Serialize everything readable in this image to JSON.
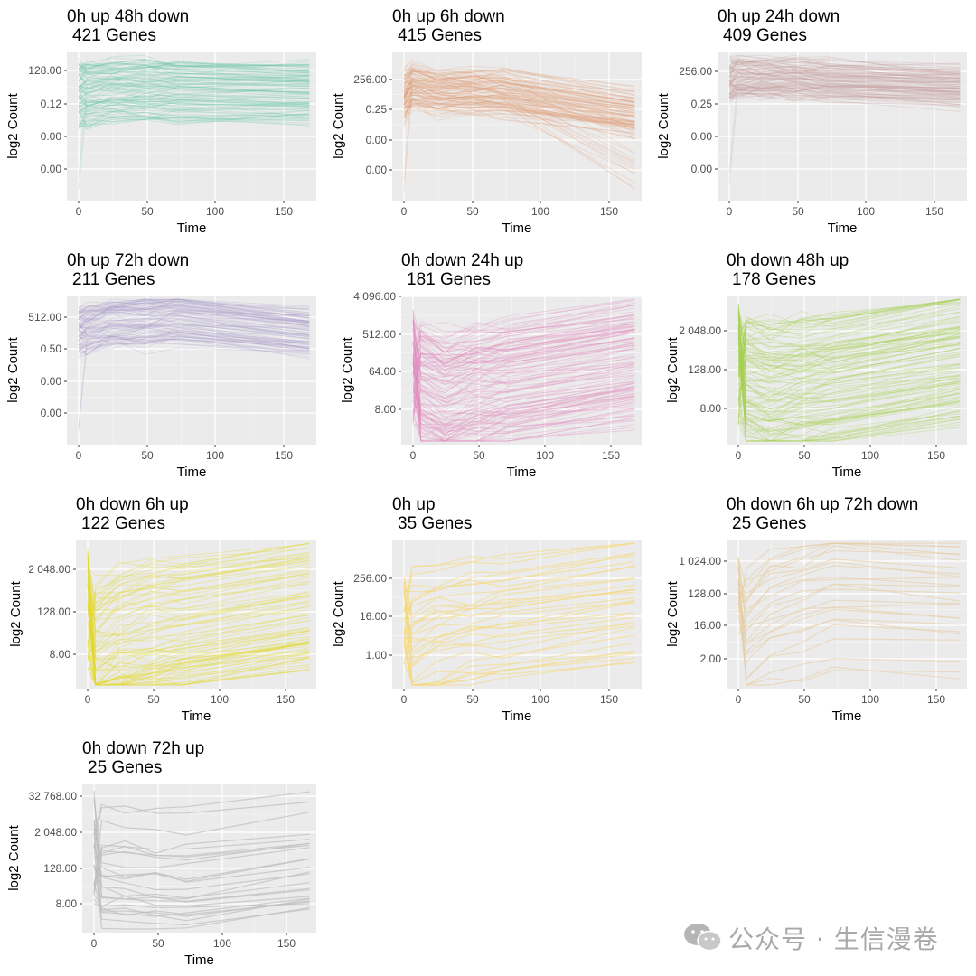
{
  "watermark": {
    "text": "公众号 · 生信漫卷"
  },
  "chart_data": [
    {
      "type": "line",
      "title": "0h up 48h down",
      "subtitle": "421 Genes",
      "xlabel": "Time",
      "ylabel": "log2 Count",
      "color": "#66C2A5",
      "xticks": [
        0,
        50,
        100,
        150
      ],
      "yticks": [
        "128.00",
        "0.12",
        "0.00",
        "0.00"
      ],
      "time_points": [
        0,
        6,
        24,
        48,
        72,
        168
      ],
      "n_genes": 421,
      "grid": true,
      "legend": "none"
    },
    {
      "type": "line",
      "title": "0h up 6h down",
      "subtitle": "415 Genes",
      "xlabel": "Time",
      "ylabel": "log2 Count",
      "color": "#E09D74",
      "xticks": [
        0,
        50,
        100,
        150
      ],
      "yticks": [
        "256.00",
        "0.25",
        "0.00",
        "0.00"
      ],
      "time_points": [
        0,
        6,
        24,
        48,
        72,
        168
      ],
      "n_genes": 415,
      "grid": true,
      "legend": "none"
    },
    {
      "type": "line",
      "title": "0h up 24h down",
      "subtitle": "409 Genes",
      "xlabel": "Time",
      "ylabel": "log2 Count",
      "color": "#C4999C",
      "xticks": [
        0,
        50,
        100,
        150
      ],
      "yticks": [
        "256.00",
        "0.25",
        "0.00",
        "0.00"
      ],
      "time_points": [
        0,
        6,
        24,
        48,
        72,
        168
      ],
      "n_genes": 409,
      "grid": true,
      "legend": "none"
    },
    {
      "type": "line",
      "title": "0h up 72h down",
      "subtitle": "211 Genes",
      "xlabel": "Time",
      "ylabel": "log2 Count",
      "color": "#A99BC9",
      "xticks": [
        0,
        50,
        100,
        150
      ],
      "yticks": [
        "512.00",
        "0.50",
        "0.00",
        "0.00"
      ],
      "time_points": [
        0,
        6,
        24,
        48,
        72,
        168
      ],
      "n_genes": 211,
      "grid": true,
      "legend": "none"
    },
    {
      "type": "line",
      "title": "0h down 24h up",
      "subtitle": "181 Genes",
      "xlabel": "Time",
      "ylabel": "log2 Count",
      "color": "#E28EC0",
      "xticks": [
        0,
        50,
        100,
        150
      ],
      "yticks": [
        "4 096.00",
        "512.00",
        "64.00",
        "8.00"
      ],
      "time_points": [
        0,
        6,
        24,
        48,
        72,
        168
      ],
      "n_genes": 181,
      "grid": true,
      "legend": "none"
    },
    {
      "type": "line",
      "title": "0h down 48h up",
      "subtitle": "178 Genes",
      "xlabel": "Time",
      "ylabel": "log2 Count",
      "color": "#A6D254",
      "xticks": [
        0,
        50,
        100,
        150
      ],
      "yticks": [
        "2 048.00",
        "128.00",
        "8.00"
      ],
      "time_points": [
        0,
        6,
        24,
        48,
        72,
        168
      ],
      "n_genes": 178,
      "grid": true,
      "legend": "none"
    },
    {
      "type": "line",
      "title": "0h down 6h up",
      "subtitle": "122 Genes",
      "xlabel": "Time",
      "ylabel": "log2 Count",
      "color": "#E3D932",
      "xticks": [
        0,
        50,
        100,
        150
      ],
      "yticks": [
        "2 048.00",
        "128.00",
        "8.00"
      ],
      "time_points": [
        0,
        6,
        24,
        48,
        72,
        168
      ],
      "n_genes": 122,
      "grid": true,
      "legend": "none"
    },
    {
      "type": "line",
      "title": "0h up",
      "subtitle": "35 Genes",
      "xlabel": "Time",
      "ylabel": "log2 Count",
      "color": "#F6D97A",
      "xticks": [
        0,
        50,
        100,
        150
      ],
      "yticks": [
        "256.00",
        "16.00",
        "1.00"
      ],
      "time_points": [
        0,
        6,
        24,
        48,
        72,
        168
      ],
      "n_genes": 35,
      "grid": true,
      "legend": "none"
    },
    {
      "type": "line",
      "title": "0h down 6h up 72h down",
      "subtitle": "25 Genes",
      "xlabel": "Time",
      "ylabel": "log2 Count",
      "color": "#E6CEA7",
      "xticks": [
        0,
        50,
        100,
        150
      ],
      "yticks": [
        "1 024.00",
        "128.00",
        "16.00",
        "2.00"
      ],
      "time_points": [
        0,
        6,
        24,
        48,
        72,
        168
      ],
      "n_genes": 25,
      "grid": true,
      "legend": "none"
    },
    {
      "type": "line",
      "title": "0h down 72h up",
      "subtitle": "25 Genes",
      "xlabel": "Time",
      "ylabel": "log2 Count",
      "color": "#BDBDBD",
      "xticks": [
        0,
        50,
        100,
        150
      ],
      "yticks": [
        "32 768.00",
        "2 048.00",
        "128.00",
        "8.00"
      ],
      "time_points": [
        0,
        6,
        24,
        48,
        72,
        168
      ],
      "n_genes": 25,
      "grid": true,
      "legend": "none"
    }
  ]
}
